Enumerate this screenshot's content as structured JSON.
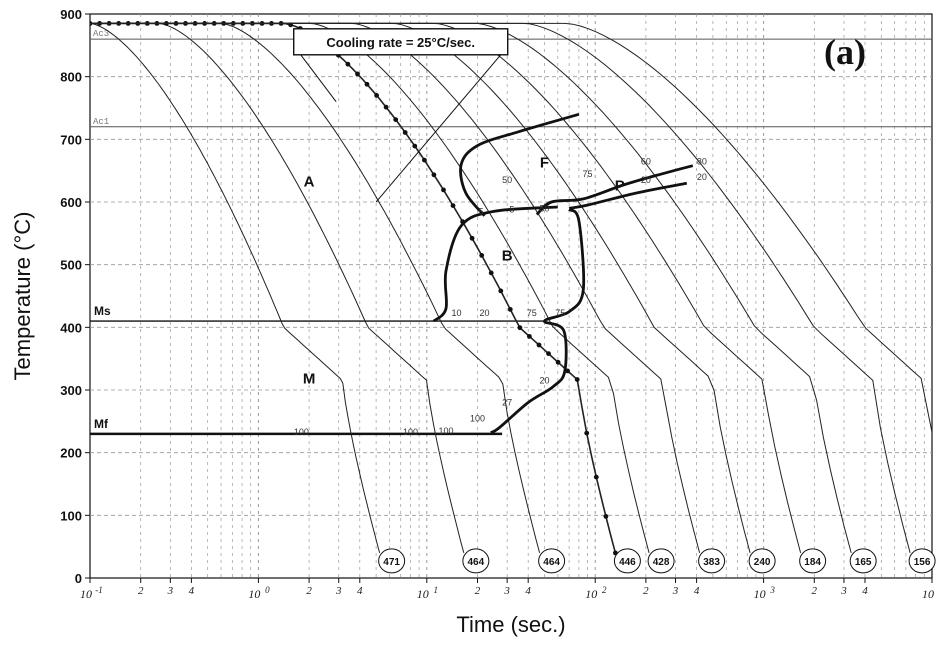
{
  "chart_data": {
    "type": "line",
    "panel_label": "(a)",
    "xlabel": "Time (sec.)",
    "ylabel": "Temperature (°C)",
    "x_scale": "log",
    "xlim": [
      0.1,
      10000
    ],
    "ylim": [
      0,
      900
    ],
    "x_ticks": [
      {
        "value": 0.1,
        "base": "10",
        "exp": "-1"
      },
      {
        "value": 0.2,
        "label": "2"
      },
      {
        "value": 0.3,
        "label": "3"
      },
      {
        "value": 0.4,
        "label": "4"
      },
      {
        "value": 1,
        "base": "10",
        "exp": "0"
      },
      {
        "value": 2,
        "label": "2"
      },
      {
        "value": 3,
        "label": "3"
      },
      {
        "value": 4,
        "label": "4"
      },
      {
        "value": 10,
        "base": "10",
        "exp": "1"
      },
      {
        "value": 20,
        "label": "2"
      },
      {
        "value": 30,
        "label": "3"
      },
      {
        "value": 40,
        "label": "4"
      },
      {
        "value": 100,
        "base": "10",
        "exp": "2"
      },
      {
        "value": 200,
        "label": "2"
      },
      {
        "value": 300,
        "label": "3"
      },
      {
        "value": 400,
        "label": "4"
      },
      {
        "value": 1000,
        "base": "10",
        "exp": "3"
      },
      {
        "value": 2000,
        "label": "2"
      },
      {
        "value": 3000,
        "label": "3"
      },
      {
        "value": 4000,
        "label": "4"
      },
      {
        "value": 10000,
        "base": "10",
        "exp": ""
      }
    ],
    "y_ticks": [
      0,
      100,
      200,
      300,
      400,
      500,
      600,
      700,
      800,
      900
    ],
    "grid": true,
    "reference_lines": [
      {
        "label": "Ac3",
        "y": 860
      },
      {
        "label": "Ac1",
        "y": 720
      },
      {
        "label": "Ms",
        "y": 410
      },
      {
        "label": "Mf",
        "y": 230
      }
    ],
    "region_labels": [
      {
        "label": "A",
        "x": 2.0,
        "y": 625
      },
      {
        "label": "F",
        "x": 50,
        "y": 655
      },
      {
        "label": "P",
        "x": 140,
        "y": 618
      },
      {
        "label": "B",
        "x": 30,
        "y": 507
      },
      {
        "label": "M",
        "x": 2.0,
        "y": 310
      }
    ],
    "annotation": {
      "text": "Cooling rate = 25°C/sec.",
      "x": 7,
      "y": 870,
      "target_x": 5.0,
      "target_y": 600
    },
    "cooling_curves": [
      {
        "hardness": "471",
        "shift": 0.0
      },
      {
        "hardness": "464",
        "shift": 0.5
      },
      {
        "hardness": "464",
        "shift": 0.95
      },
      {
        "hardness": "446",
        "shift": 1.4,
        "highlighted": true
      },
      {
        "hardness": "428",
        "shift": 1.6
      },
      {
        "hardness": "383",
        "shift": 1.9
      },
      {
        "hardness": "240",
        "shift": 2.2
      },
      {
        "hardness": "184",
        "shift": 2.5
      },
      {
        "hardness": "165",
        "shift": 2.8
      },
      {
        "hardness": "156",
        "shift": 3.15
      },
      {
        "hardness": "156",
        "shift": 3.45
      }
    ],
    "transformation_curves": [
      {
        "name": "ferrite-start",
        "points": [
          [
            80,
            740
          ],
          [
            35,
            712
          ],
          [
            20,
            690
          ],
          [
            16,
            660
          ],
          [
            17,
            615
          ],
          [
            22,
            578
          ]
        ]
      },
      {
        "name": "pearlite-start",
        "points": [
          [
            380,
            658
          ],
          [
            250,
            645
          ],
          [
            150,
            628
          ],
          [
            85,
            605
          ],
          [
            55,
            600
          ],
          [
            45,
            580
          ]
        ]
      },
      {
        "name": "pearlite-end",
        "points": [
          [
            350,
            630
          ],
          [
            180,
            615
          ],
          [
            90,
            595
          ],
          [
            70,
            590
          ]
        ]
      },
      {
        "name": "bainite-start",
        "points": [
          [
            60,
            592
          ],
          [
            25,
            585
          ],
          [
            16,
            562
          ],
          [
            13,
            490
          ],
          [
            13,
            430
          ],
          [
            11,
            410
          ]
        ]
      },
      {
        "name": "bainite-end",
        "points": [
          [
            70,
            588
          ],
          [
            80,
            570
          ],
          [
            85,
            460
          ],
          [
            70,
            425
          ],
          [
            50,
            410
          ],
          [
            65,
            395
          ],
          [
            66,
            330
          ],
          [
            56,
            305
          ],
          [
            40,
            280
          ],
          [
            27,
            240
          ],
          [
            24,
            232
          ]
        ]
      }
    ],
    "curve_percent_labels": [
      {
        "label": "5",
        "x": 21,
        "y": 580
      },
      {
        "label": "5",
        "x": 32,
        "y": 583
      },
      {
        "label": "50",
        "x": 30,
        "y": 630
      },
      {
        "label": "50",
        "x": 50,
        "y": 585
      },
      {
        "label": "10",
        "x": 15,
        "y": 418
      },
      {
        "label": "20",
        "x": 22,
        "y": 418
      },
      {
        "label": "75",
        "x": 42,
        "y": 418
      },
      {
        "label": "75",
        "x": 90,
        "y": 640
      },
      {
        "label": "75",
        "x": 62,
        "y": 418
      },
      {
        "label": "20",
        "x": 50,
        "y": 310
      },
      {
        "label": "27",
        "x": 30,
        "y": 275
      },
      {
        "label": "100",
        "x": 20,
        "y": 250
      },
      {
        "label": "100",
        "x": 13,
        "y": 230
      },
      {
        "label": "100",
        "x": 1.8,
        "y": 228
      },
      {
        "label": "100",
        "x": 8,
        "y": 228
      },
      {
        "label": "60",
        "x": 200,
        "y": 660
      },
      {
        "label": "80",
        "x": 430,
        "y": 660
      },
      {
        "label": "20",
        "x": 200,
        "y": 630
      },
      {
        "label": "20",
        "x": 430,
        "y": 635
      }
    ]
  }
}
